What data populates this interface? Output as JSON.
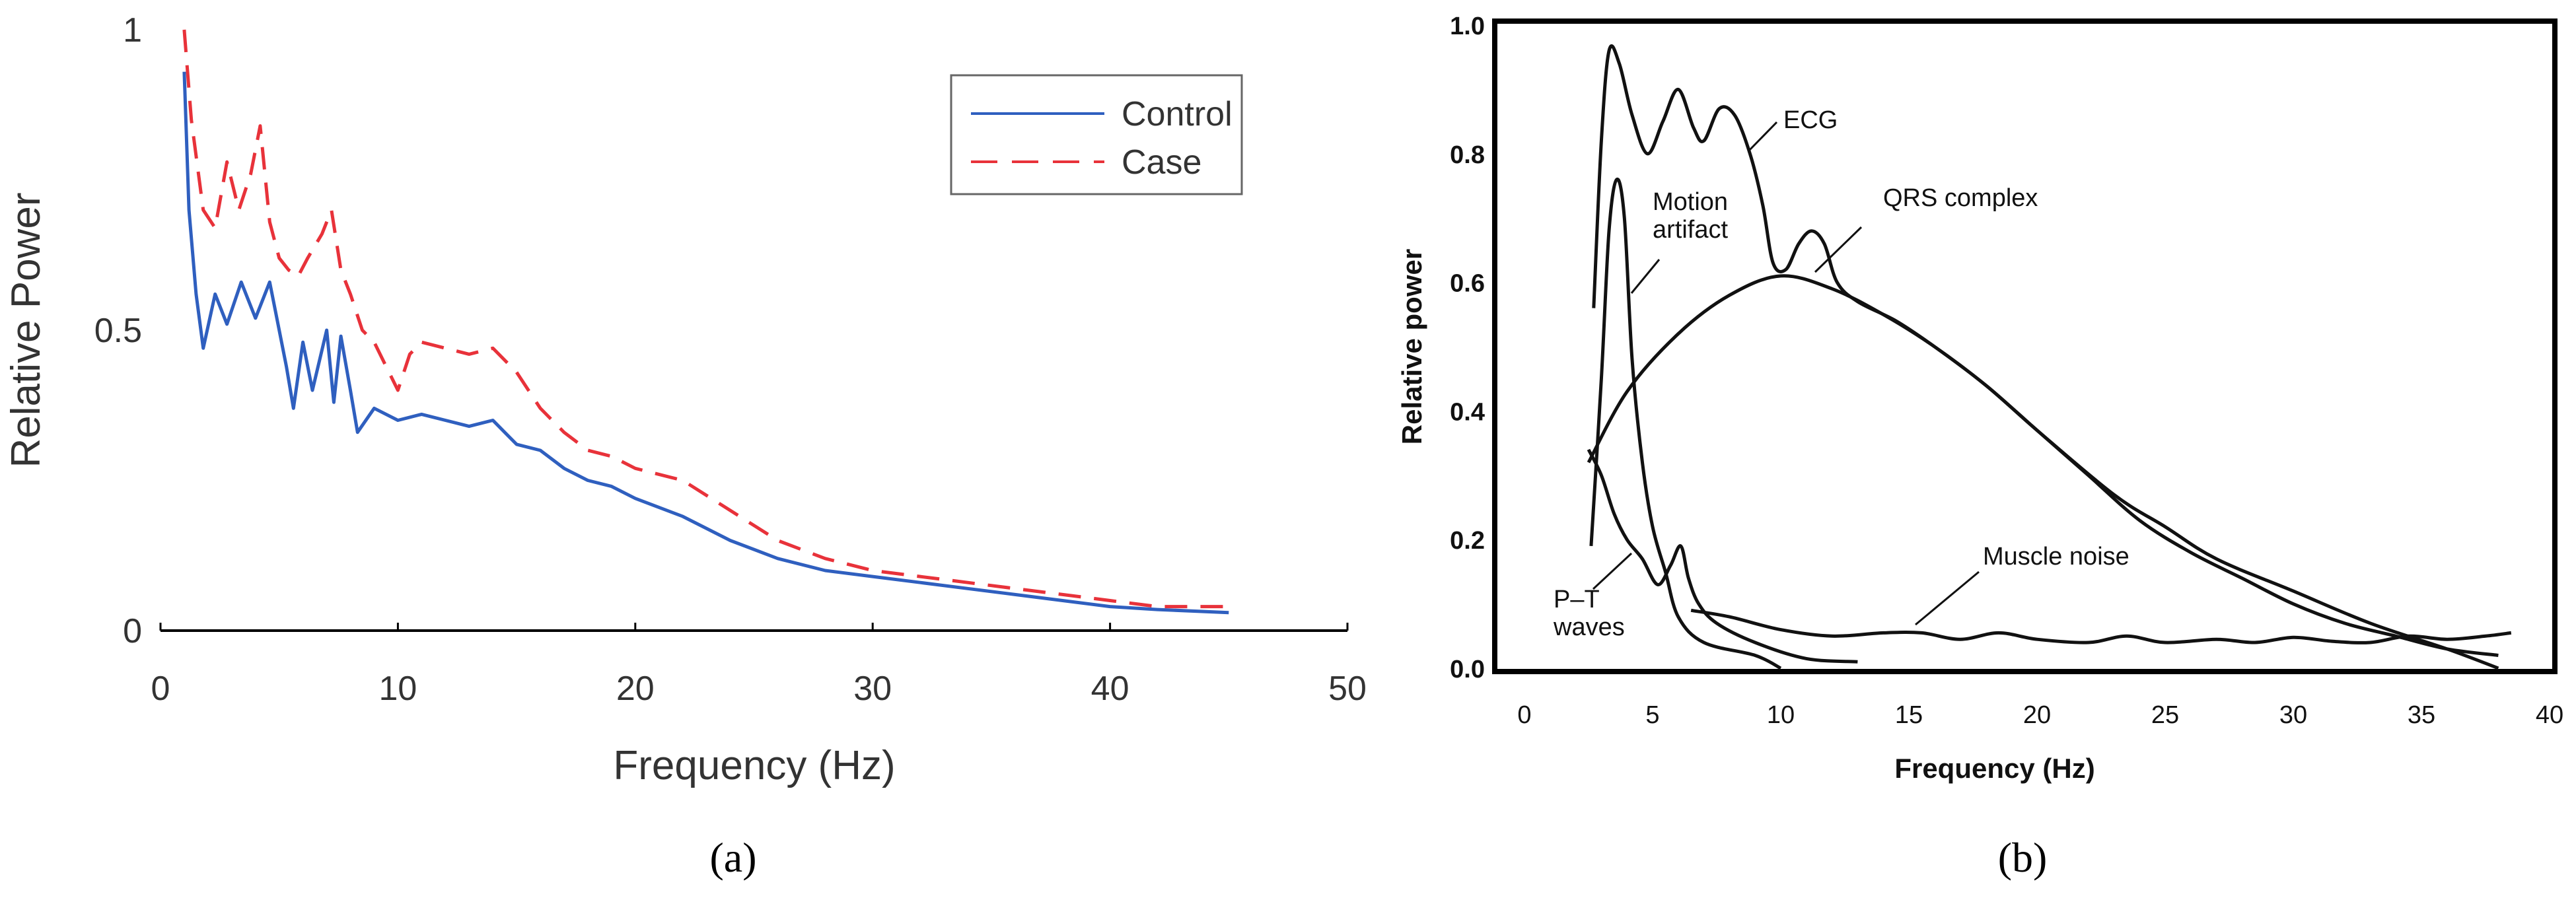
{
  "colors": {
    "control": "#2f5fbf",
    "case": "#e8323a",
    "axis": "#000000",
    "curve_b": "#111111"
  },
  "panels": {
    "a": {
      "caption": "(a)"
    },
    "b": {
      "caption": "(b)"
    }
  },
  "chart_data": [
    {
      "type": "line",
      "panel": "a",
      "xlabel": "Frequency (Hz)",
      "ylabel": "Relative Power",
      "xlim": [
        0,
        50
      ],
      "ylim": [
        0,
        1
      ],
      "x_ticks": [
        "0",
        "10",
        "20",
        "30",
        "40",
        "50"
      ],
      "y_ticks": [
        "0",
        "0.5",
        "1"
      ],
      "grid": false,
      "legend_position": "top-right",
      "series": [
        {
          "name": "Control",
          "style": "solid",
          "points": [
            [
              1.0,
              0.93
            ],
            [
              1.2,
              0.7
            ],
            [
              1.5,
              0.56
            ],
            [
              1.8,
              0.47
            ],
            [
              2.3,
              0.56
            ],
            [
              2.8,
              0.51
            ],
            [
              3.4,
              0.58
            ],
            [
              4.0,
              0.52
            ],
            [
              4.6,
              0.58
            ],
            [
              5.0,
              0.5
            ],
            [
              5.3,
              0.44
            ],
            [
              5.6,
              0.37
            ],
            [
              6.0,
              0.48
            ],
            [
              6.4,
              0.4
            ],
            [
              7.0,
              0.5
            ],
            [
              7.3,
              0.38
            ],
            [
              7.6,
              0.49
            ],
            [
              8.0,
              0.4
            ],
            [
              8.3,
              0.33
            ],
            [
              9.0,
              0.37
            ],
            [
              10.0,
              0.35
            ],
            [
              11.0,
              0.36
            ],
            [
              12.0,
              0.35
            ],
            [
              13.0,
              0.34
            ],
            [
              14.0,
              0.35
            ],
            [
              15.0,
              0.31
            ],
            [
              16.0,
              0.3
            ],
            [
              17.0,
              0.27
            ],
            [
              18.0,
              0.25
            ],
            [
              19.0,
              0.24
            ],
            [
              20.0,
              0.22
            ],
            [
              22.0,
              0.19
            ],
            [
              24.0,
              0.15
            ],
            [
              26.0,
              0.12
            ],
            [
              28.0,
              0.1
            ],
            [
              30.0,
              0.09
            ],
            [
              32.0,
              0.08
            ],
            [
              34.0,
              0.07
            ],
            [
              36.0,
              0.06
            ],
            [
              38.0,
              0.05
            ],
            [
              40.0,
              0.04
            ],
            [
              42.0,
              0.035
            ],
            [
              45.0,
              0.03
            ]
          ]
        },
        {
          "name": "Case",
          "style": "dashed",
          "points": [
            [
              1.0,
              1.0
            ],
            [
              1.3,
              0.85
            ],
            [
              1.8,
              0.7
            ],
            [
              2.3,
              0.67
            ],
            [
              2.8,
              0.78
            ],
            [
              3.3,
              0.7
            ],
            [
              3.8,
              0.76
            ],
            [
              4.2,
              0.84
            ],
            [
              4.6,
              0.68
            ],
            [
              5.0,
              0.62
            ],
            [
              5.4,
              0.6
            ],
            [
              5.8,
              0.59
            ],
            [
              6.2,
              0.62
            ],
            [
              6.8,
              0.66
            ],
            [
              7.2,
              0.7
            ],
            [
              7.6,
              0.6
            ],
            [
              8.0,
              0.56
            ],
            [
              8.5,
              0.5
            ],
            [
              9.0,
              0.48
            ],
            [
              9.5,
              0.44
            ],
            [
              10.0,
              0.4
            ],
            [
              10.5,
              0.46
            ],
            [
              11.0,
              0.48
            ],
            [
              12.0,
              0.47
            ],
            [
              13.0,
              0.46
            ],
            [
              14.0,
              0.47
            ],
            [
              15.0,
              0.43
            ],
            [
              16.0,
              0.37
            ],
            [
              17.0,
              0.33
            ],
            [
              18.0,
              0.3
            ],
            [
              19.0,
              0.29
            ],
            [
              20.0,
              0.27
            ],
            [
              22.0,
              0.25
            ],
            [
              24.0,
              0.2
            ],
            [
              26.0,
              0.15
            ],
            [
              28.0,
              0.12
            ],
            [
              30.0,
              0.1
            ],
            [
              32.0,
              0.09
            ],
            [
              34.0,
              0.08
            ],
            [
              36.0,
              0.07
            ],
            [
              38.0,
              0.06
            ],
            [
              40.0,
              0.05
            ],
            [
              42.0,
              0.04
            ],
            [
              45.0,
              0.04
            ]
          ]
        }
      ]
    },
    {
      "type": "line",
      "panel": "b",
      "xlabel": "Frequency (Hz)",
      "ylabel": "Relative power",
      "xlim": [
        0,
        40
      ],
      "ylim": [
        0,
        1.0
      ],
      "x_ticks": [
        "0",
        "5",
        "10",
        "15",
        "20",
        "25",
        "30",
        "35",
        "40"
      ],
      "y_ticks": [
        "0.0",
        "0.2",
        "0.4",
        "0.6",
        "0.8",
        "1.0"
      ],
      "grid": false,
      "annotations": [
        "ECG",
        "QRS complex",
        "Motion artifact",
        "P–T waves",
        "Muscle noise"
      ],
      "series": [
        {
          "label": "ECG",
          "points": [
            [
              2.7,
              0.56
            ],
            [
              3.0,
              0.82
            ],
            [
              3.3,
              0.96
            ],
            [
              3.7,
              0.94
            ],
            [
              4.2,
              0.86
            ],
            [
              4.8,
              0.8
            ],
            [
              5.4,
              0.85
            ],
            [
              6.0,
              0.9
            ],
            [
              6.6,
              0.84
            ],
            [
              7.0,
              0.82
            ],
            [
              7.6,
              0.87
            ],
            [
              8.2,
              0.86
            ],
            [
              8.8,
              0.8
            ],
            [
              9.3,
              0.72
            ],
            [
              9.7,
              0.63
            ],
            [
              10.2,
              0.62
            ],
            [
              10.7,
              0.66
            ],
            [
              11.2,
              0.68
            ],
            [
              11.7,
              0.66
            ],
            [
              12.2,
              0.6
            ],
            [
              13.0,
              0.57
            ],
            [
              14.5,
              0.54
            ],
            [
              16.0,
              0.5
            ],
            [
              18.0,
              0.44
            ],
            [
              20.0,
              0.37
            ],
            [
              23.0,
              0.27
            ],
            [
              25.0,
              0.22
            ],
            [
              27.0,
              0.17
            ],
            [
              30.0,
              0.12
            ],
            [
              33.0,
              0.07
            ],
            [
              36.0,
              0.03
            ],
            [
              38.0,
              0.0
            ]
          ]
        },
        {
          "label": "QRS complex",
          "points": [
            [
              2.5,
              0.32
            ],
            [
              4.0,
              0.43
            ],
            [
              6.0,
              0.52
            ],
            [
              8.0,
              0.58
            ],
            [
              10.0,
              0.61
            ],
            [
              12.0,
              0.59
            ],
            [
              14.0,
              0.55
            ],
            [
              16.0,
              0.5
            ],
            [
              18.0,
              0.44
            ],
            [
              20.0,
              0.37
            ],
            [
              22.0,
              0.3
            ],
            [
              24.0,
              0.23
            ],
            [
              26.0,
              0.18
            ],
            [
              28.0,
              0.14
            ],
            [
              30.0,
              0.1
            ],
            [
              32.0,
              0.07
            ],
            [
              34.0,
              0.05
            ],
            [
              36.0,
              0.03
            ],
            [
              38.0,
              0.02
            ]
          ]
        },
        {
          "label": "Motion artifact",
          "points": [
            [
              2.6,
              0.19
            ],
            [
              3.0,
              0.45
            ],
            [
              3.3,
              0.68
            ],
            [
              3.6,
              0.76
            ],
            [
              3.9,
              0.7
            ],
            [
              4.2,
              0.48
            ],
            [
              4.6,
              0.32
            ],
            [
              5.0,
              0.22
            ],
            [
              5.5,
              0.15
            ],
            [
              6.0,
              0.08
            ],
            [
              7.0,
              0.04
            ],
            [
              9.0,
              0.02
            ],
            [
              10.0,
              0.0
            ]
          ]
        },
        {
          "label": "P–T waves",
          "points": [
            [
              2.5,
              0.34
            ],
            [
              3.0,
              0.3
            ],
            [
              3.5,
              0.24
            ],
            [
              4.0,
              0.2
            ],
            [
              4.6,
              0.17
            ],
            [
              5.2,
              0.13
            ],
            [
              5.7,
              0.16
            ],
            [
              6.1,
              0.19
            ],
            [
              6.4,
              0.14
            ],
            [
              6.8,
              0.1
            ],
            [
              7.5,
              0.07
            ],
            [
              9.0,
              0.04
            ],
            [
              11.0,
              0.015
            ],
            [
              13.0,
              0.01
            ]
          ]
        },
        {
          "label": "Muscle noise",
          "points": [
            [
              6.5,
              0.09
            ],
            [
              8.0,
              0.08
            ],
            [
              10.0,
              0.06
            ],
            [
              12.0,
              0.05
            ],
            [
              14.0,
              0.055
            ],
            [
              15.5,
              0.055
            ],
            [
              17.0,
              0.045
            ],
            [
              18.5,
              0.055
            ],
            [
              20.0,
              0.045
            ],
            [
              22.0,
              0.04
            ],
            [
              23.5,
              0.05
            ],
            [
              25.0,
              0.04
            ],
            [
              27.0,
              0.045
            ],
            [
              28.5,
              0.04
            ],
            [
              30.0,
              0.048
            ],
            [
              31.5,
              0.042
            ],
            [
              33.0,
              0.04
            ],
            [
              34.5,
              0.05
            ],
            [
              36.0,
              0.045
            ],
            [
              37.5,
              0.05
            ],
            [
              38.5,
              0.055
            ]
          ]
        }
      ]
    }
  ]
}
